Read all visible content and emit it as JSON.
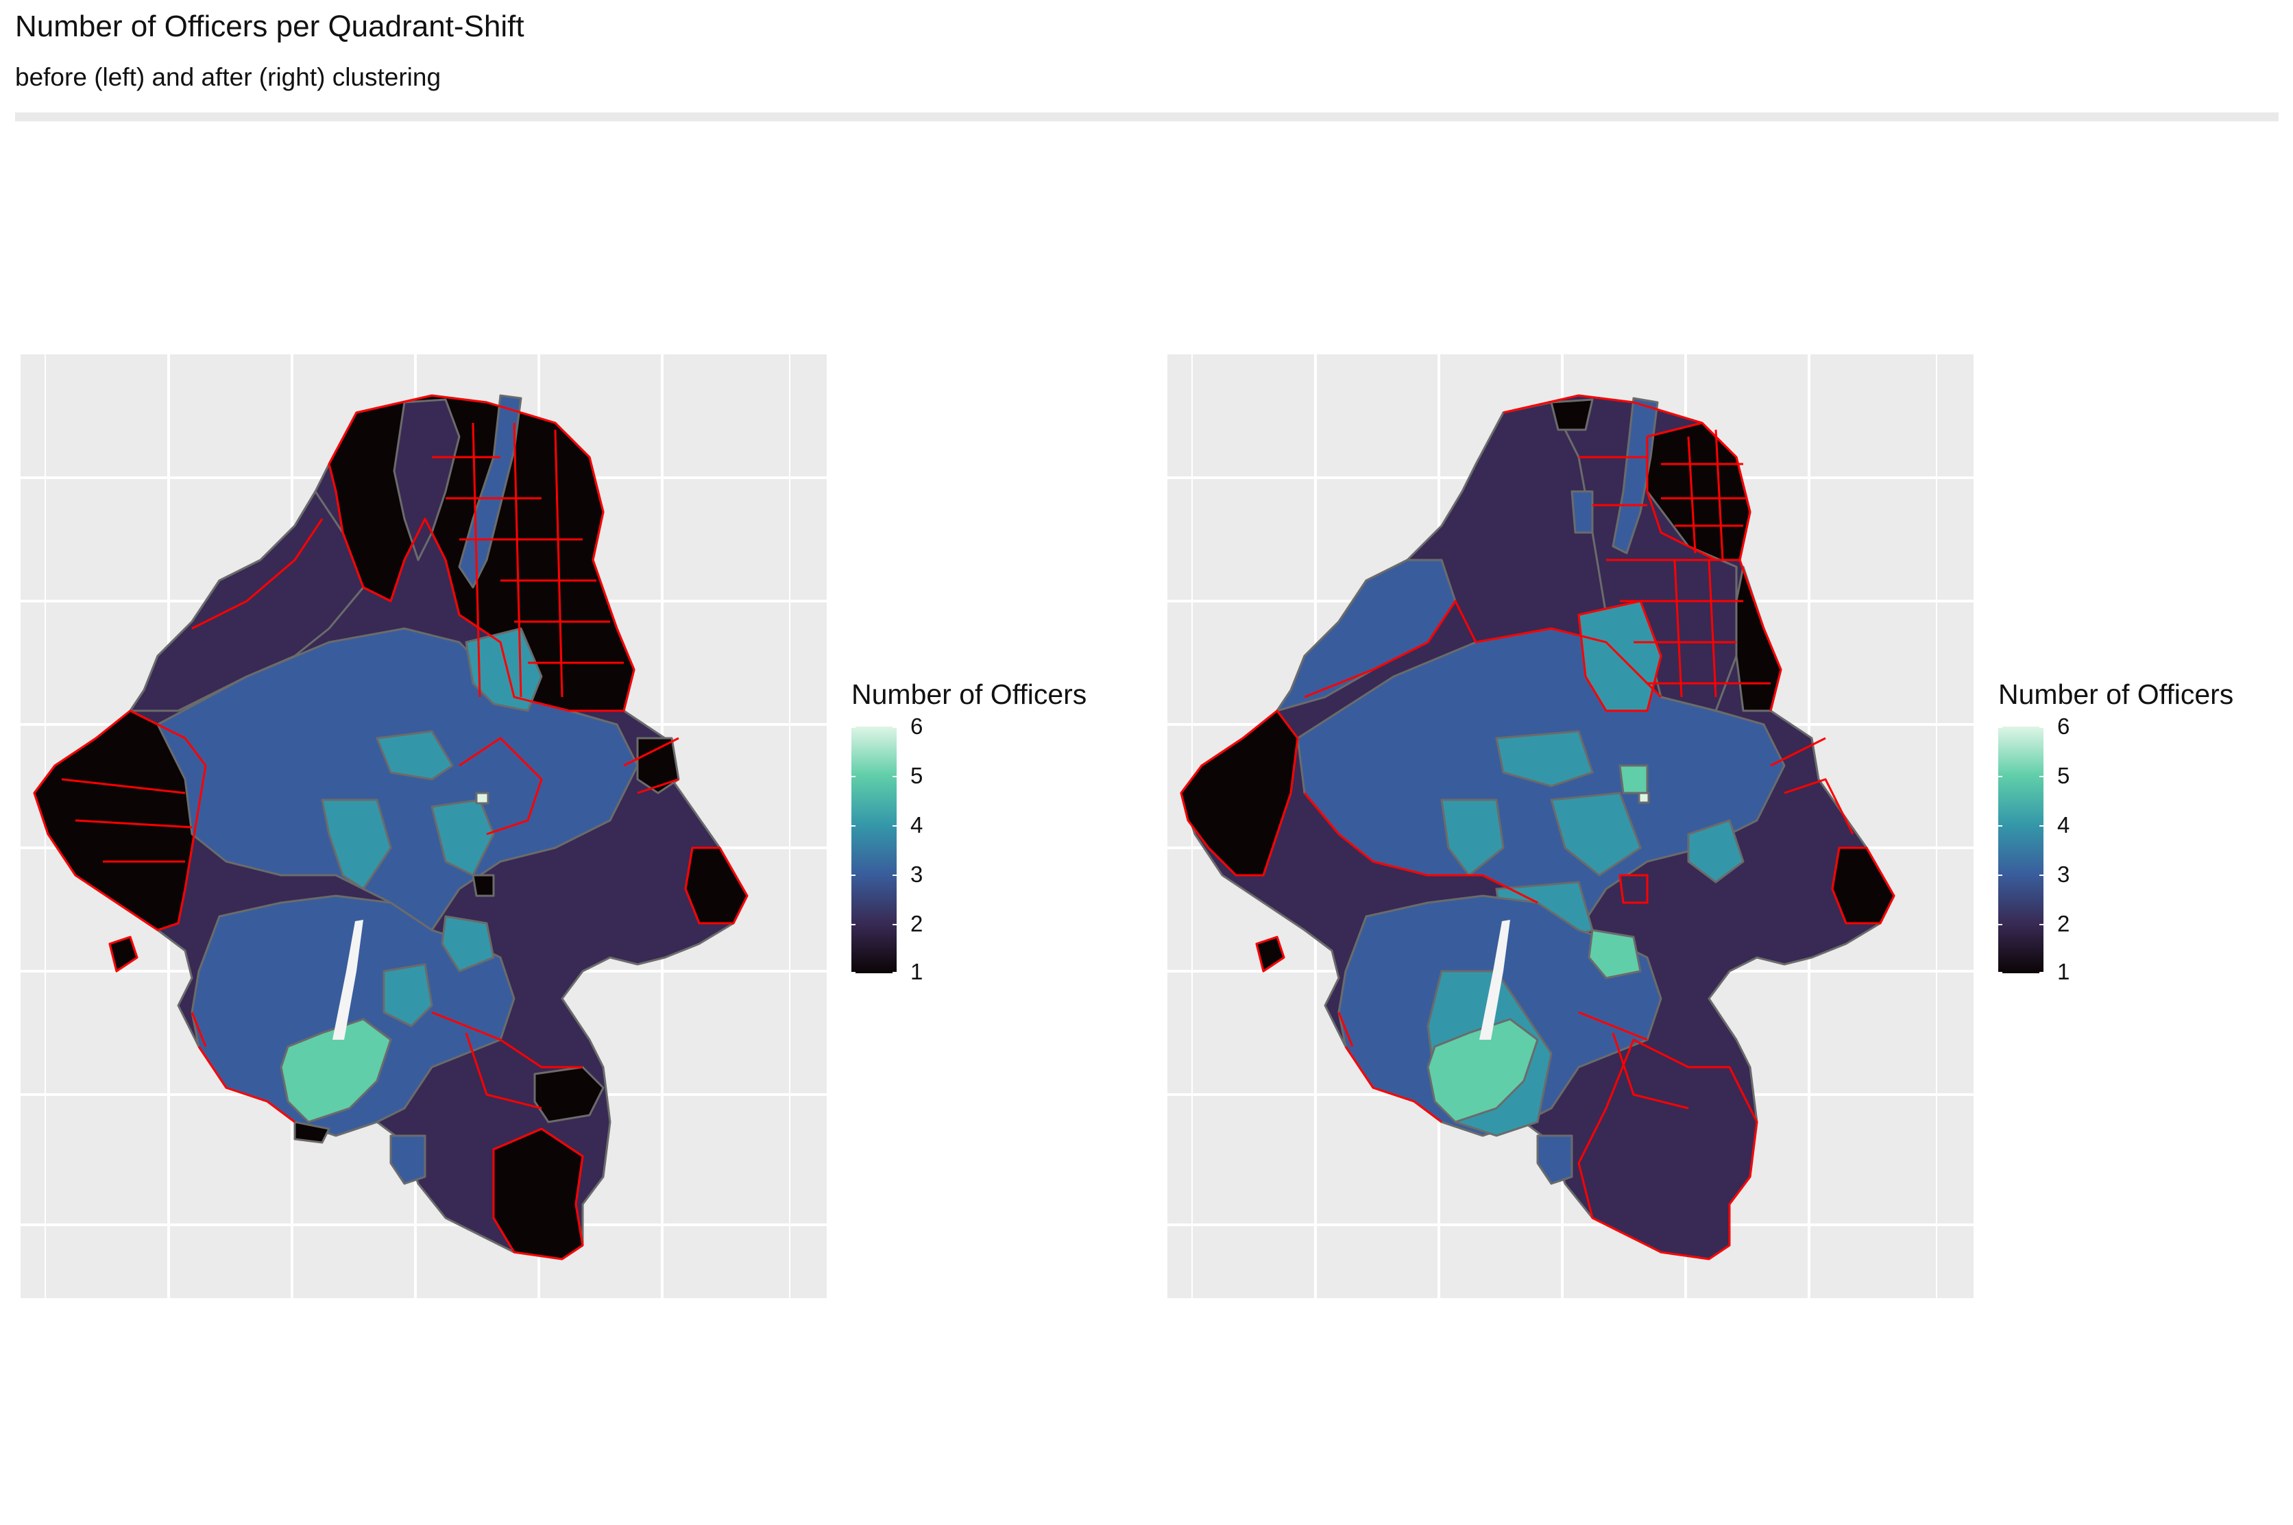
{
  "title": "Number of Officers per Quadrant-Shift",
  "subtitle": "before (left) and after (right) clustering",
  "panels": [
    {
      "id": "left",
      "legend": {
        "title": "Number of Officers",
        "ticks": [
          "6",
          "5",
          "4",
          "3",
          "2",
          "1"
        ]
      }
    },
    {
      "id": "right",
      "legend": {
        "title": "Number of Officers",
        "ticks": [
          "6",
          "5",
          "4",
          "3",
          "2",
          "1"
        ]
      }
    }
  ],
  "colors": {
    "panel_background": "#ebebeb",
    "gridline": "#ffffff",
    "value_1": "#0b0405",
    "value_2": "#382a54",
    "value_3": "#395d9c",
    "value_4": "#3497a9",
    "value_5": "#60cea9",
    "value_6": "#def5e5",
    "cluster_border": "#ff0000",
    "district_border": "#6b6b6b"
  }
}
